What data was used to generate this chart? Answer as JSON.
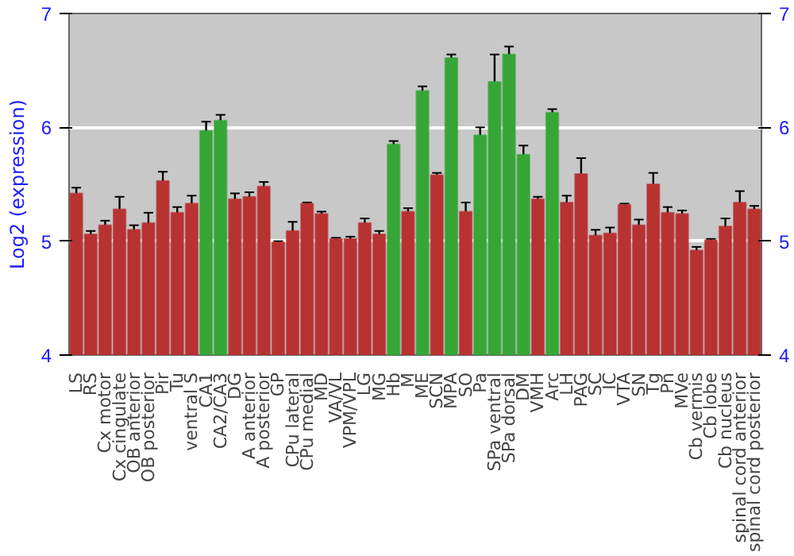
{
  "chart_data": {
    "type": "bar",
    "ylabel": "Log2 (expression)",
    "categories": [
      "LS",
      "RS",
      "Cx motor",
      "Cx cingulate",
      "OB anterior",
      "OB posterior",
      "Pir",
      "Tu",
      "ventral S",
      "CA1",
      "CA2/CA3",
      "DG",
      "A anterior",
      "A posterior",
      "GP",
      "CPu lateral",
      "CPu medial",
      "MD",
      "VA/VL",
      "VPM/VPL",
      "LG",
      "MG",
      "Hb",
      "M",
      "ME",
      "SCN",
      "MPA",
      "SO",
      "Pa",
      "SPa ventral",
      "SPa dorsal",
      "DM",
      "VMH",
      "Arc",
      "LH",
      "PAG",
      "SC",
      "IC",
      "VTA",
      "SN",
      "Tg",
      "Pn",
      "MVe",
      "Cb vermis",
      "Cb lobe",
      "Cb nucleus",
      "spinal cord anterior",
      "spinal cord posterior"
    ],
    "values": [
      5.42,
      5.06,
      5.14,
      5.28,
      5.1,
      5.16,
      5.53,
      5.25,
      5.33,
      5.97,
      6.06,
      5.37,
      5.39,
      5.48,
      4.99,
      5.09,
      5.33,
      5.24,
      5.02,
      5.02,
      5.16,
      5.06,
      5.85,
      5.26,
      6.32,
      5.58,
      6.61,
      5.26,
      5.93,
      6.4,
      6.64,
      5.76,
      5.37,
      6.13,
      5.34,
      5.59,
      5.05,
      5.07,
      5.32,
      5.14,
      5.5,
      5.25,
      5.24,
      4.92,
      5.01,
      5.13,
      5.34,
      5.28
    ],
    "errors": [
      0.05,
      0.03,
      0.04,
      0.11,
      0.04,
      0.09,
      0.08,
      0.05,
      0.07,
      0.08,
      0.05,
      0.05,
      0.04,
      0.04,
      0.01,
      0.08,
      0.01,
      0.02,
      0.01,
      0.02,
      0.04,
      0.03,
      0.03,
      0.03,
      0.04,
      0.02,
      0.03,
      0.08,
      0.07,
      0.24,
      0.07,
      0.08,
      0.02,
      0.03,
      0.06,
      0.14,
      0.05,
      0.05,
      0.01,
      0.05,
      0.1,
      0.05,
      0.03,
      0.03,
      0.01,
      0.07,
      0.1,
      0.03
    ],
    "colors": [
      "#b83232",
      "#b83232",
      "#b83232",
      "#b83232",
      "#b83232",
      "#b83232",
      "#b83232",
      "#b83232",
      "#b83232",
      "#36a636",
      "#36a636",
      "#b83232",
      "#b83232",
      "#b83232",
      "#b83232",
      "#b83232",
      "#b83232",
      "#b83232",
      "#b83232",
      "#b83232",
      "#b83232",
      "#b83232",
      "#36a636",
      "#b83232",
      "#36a636",
      "#b83232",
      "#36a636",
      "#b83232",
      "#36a636",
      "#36a636",
      "#36a636",
      "#36a636",
      "#b83232",
      "#36a636",
      "#b83232",
      "#b83232",
      "#b83232",
      "#b83232",
      "#b83232",
      "#b83232",
      "#b83232",
      "#b83232",
      "#b83232",
      "#b83232",
      "#b83232",
      "#b83232",
      "#b83232",
      "#b83232"
    ],
    "ylim": [
      4,
      7
    ],
    "yticks": [
      4,
      5,
      6,
      7
    ],
    "y2lim": [
      4,
      7
    ],
    "y2ticks": [
      4,
      5,
      6,
      7
    ],
    "grid": "y"
  }
}
